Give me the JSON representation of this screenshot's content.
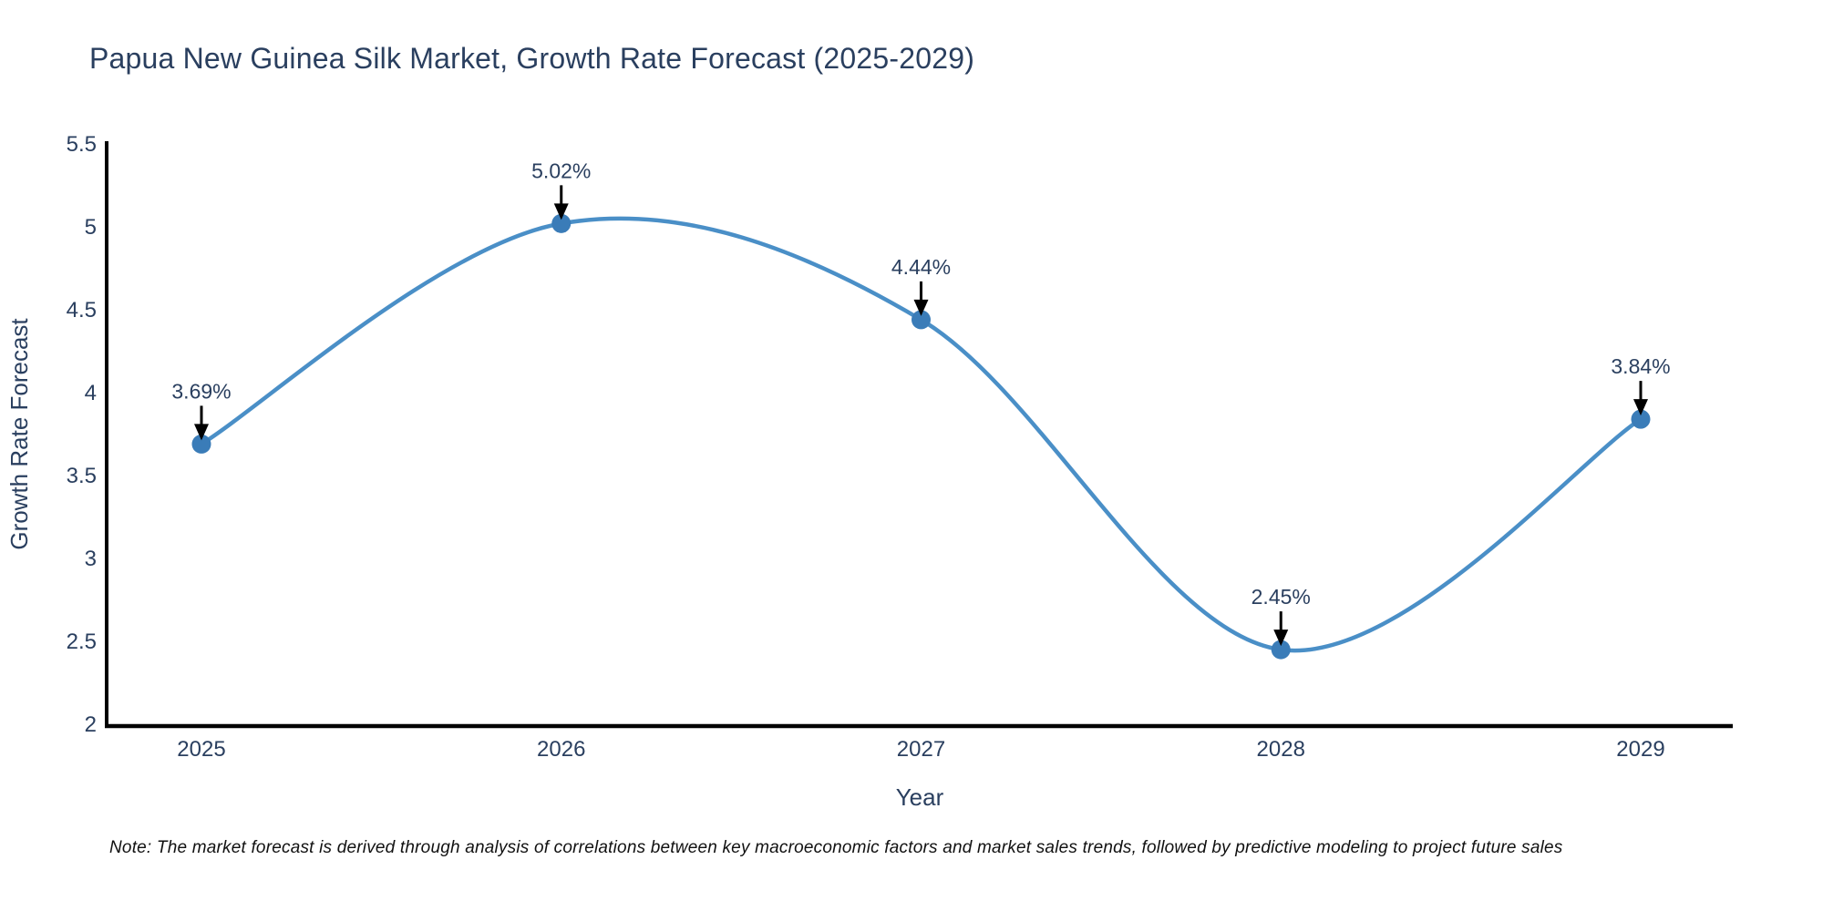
{
  "title": "Papua New Guinea Silk Market, Growth Rate Forecast (2025-2029)",
  "note": "Note: The market forecast is derived through analysis of correlations between key macroeconomic factors and market sales trends, followed by predictive modeling to project future sales",
  "colors": {
    "title_text": "#2a3f5f",
    "axis_text": "#2a3f5f",
    "axis_line": "#000000",
    "line": "#4a8fc7",
    "marker": "#3a7cb8",
    "annotation_text": "#2a3f5f",
    "annotation_arrow": "#000000",
    "background": "#ffffff"
  },
  "chart_data": {
    "type": "line",
    "title": "Papua New Guinea Silk Market, Growth Rate Forecast (2025-2029)",
    "xlabel": "Year",
    "ylabel": "Growth Rate Forecast",
    "x": [
      2025,
      2026,
      2027,
      2028,
      2029
    ],
    "y": [
      3.69,
      5.02,
      4.44,
      2.45,
      3.84
    ],
    "point_labels": [
      "3.69%",
      "5.02%",
      "4.44%",
      "2.45%",
      "3.84%"
    ],
    "x_tick_labels": [
      "2025",
      "2026",
      "2027",
      "2028",
      "2029"
    ],
    "y_tick_values": [
      2,
      2.5,
      3,
      3.5,
      4,
      4.5,
      5,
      5.5
    ],
    "y_tick_labels": [
      "2",
      "2.5",
      "3",
      "3.5",
      "4",
      "4.5",
      "5",
      "5.5"
    ],
    "ylim": [
      2,
      5.5
    ],
    "line_shape": "spline",
    "grid": false,
    "legend": "none"
  }
}
